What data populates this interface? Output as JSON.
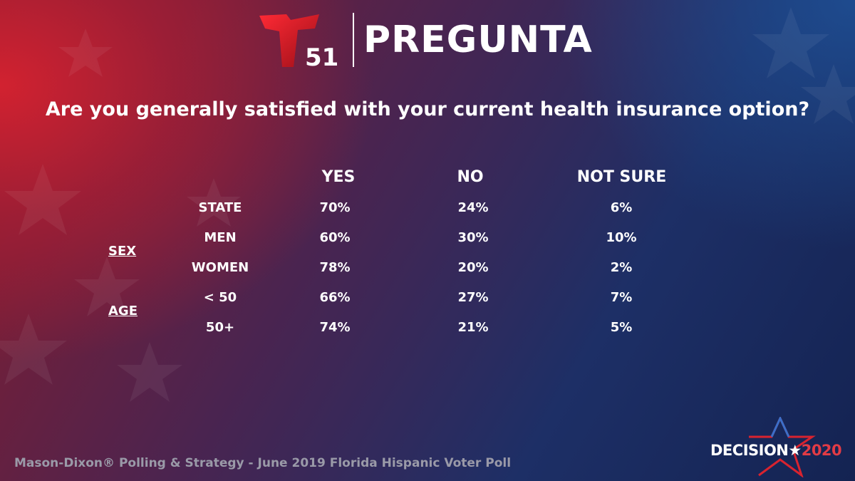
{
  "logo": {
    "number": "51"
  },
  "header": {
    "title": "PREGUNTA"
  },
  "question": "Are you generally satisfied with your current health insurance option?",
  "chart_data": {
    "type": "table",
    "columns": [
      "YES",
      "NO",
      "NOT SURE"
    ],
    "groups": [
      {
        "label": "",
        "rows": [
          0
        ]
      },
      {
        "label": "SEX",
        "rows": [
          1,
          2
        ]
      },
      {
        "label": "AGE",
        "rows": [
          3,
          4
        ]
      }
    ],
    "rows": [
      {
        "label": "STATE",
        "values": [
          "70%",
          "24%",
          "6%"
        ]
      },
      {
        "label": "MEN",
        "values": [
          "60%",
          "30%",
          "10%"
        ]
      },
      {
        "label": "WOMEN",
        "values": [
          "78%",
          "20%",
          "2%"
        ]
      },
      {
        "label": "< 50",
        "values": [
          "66%",
          "27%",
          "7%"
        ]
      },
      {
        "label": "50+",
        "values": [
          "74%",
          "21%",
          "5%"
        ]
      }
    ]
  },
  "footer": {
    "source": "Mason-Dixon® Polling & Strategy - June 2019 Florida Hispanic Voter Poll"
  },
  "badge": {
    "word": "DECISION",
    "star": "★",
    "year": "2020"
  },
  "colors": {
    "red": "#d8232f",
    "blue": "#2b4f9a",
    "text": "#ffffff",
    "footer": "#9a9aa8"
  }
}
